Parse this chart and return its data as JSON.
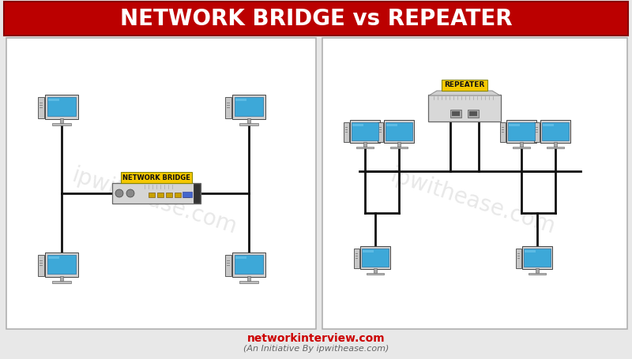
{
  "title": "NETWORK BRIDGE vs REPEATER",
  "title_bg": "#bb0000",
  "title_color": "#ffffff",
  "title_fontsize": 20,
  "footer_text1": "networkinterview.com",
  "footer_text2": "(An Initiative By ipwithease.com)",
  "footer_color1": "#cc0000",
  "footer_color2": "#666666",
  "bg_color": "#e8e8e8",
  "panel_bg": "#ffffff",
  "panel_border": "#aaaaaa",
  "watermark_left": "ipwithease.com",
  "watermark_right": "ipwithease.com",
  "watermark_color": "#dddddd",
  "bridge_label": "NETWORK BRIDGE",
  "bridge_label_bg": "#f5c800",
  "repeater_label": "REPEATER",
  "repeater_label_bg": "#f5c800",
  "line_color": "#111111",
  "line_width": 2.0
}
